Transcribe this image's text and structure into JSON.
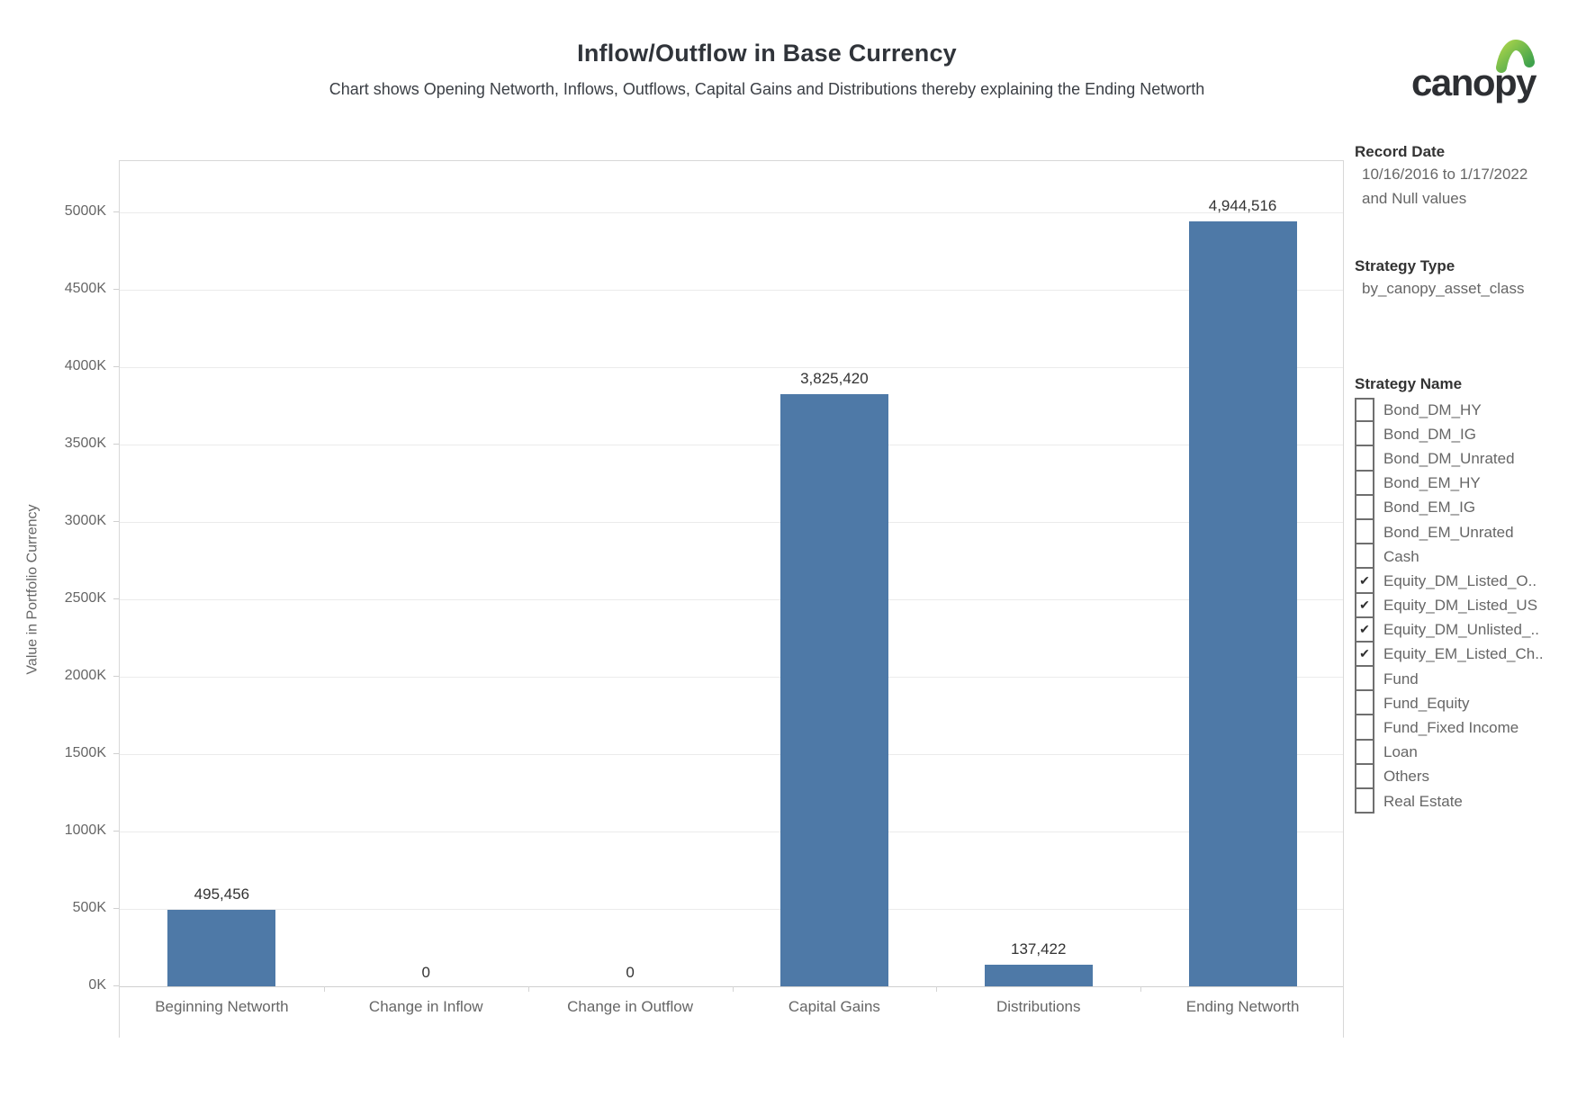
{
  "header": {
    "title": "Inflow/Outflow in Base Currency",
    "subtitle": "Chart shows Opening Networth, Inflows, Outflows, Capital Gains and Distributions thereby explaining the Ending Networth"
  },
  "brand": {
    "logo_text": "canopy"
  },
  "chart_data": {
    "type": "bar",
    "title": "Inflow/Outflow in Base Currency",
    "subtitle": "Chart shows Opening Networth, Inflows, Outflows, Capital Gains and Distributions thereby explaining the Ending Networth",
    "categories": [
      "Beginning Networth",
      "Change in Inflow",
      "Change in Outflow",
      "Capital Gains",
      "Distributions",
      "Ending Networth"
    ],
    "values": [
      495456,
      0,
      0,
      3825420,
      137422,
      4944516
    ],
    "value_labels": [
      "495,456",
      "0",
      "0",
      "3,825,420",
      "137,422",
      "4,944,516"
    ],
    "xlabel": "",
    "ylabel": "Value in Portfolio Currency",
    "ylim": [
      0,
      5330000
    ],
    "y_ticks": [
      0,
      500000,
      1000000,
      1500000,
      2000000,
      2500000,
      3000000,
      3500000,
      4000000,
      4500000,
      5000000
    ],
    "y_tick_labels": [
      "0K",
      "500K",
      "1000K",
      "1500K",
      "2000K",
      "2500K",
      "3000K",
      "3500K",
      "4000K",
      "4500K",
      "5000K"
    ],
    "bar_color": "#4e79a7",
    "grid": true,
    "legend": false
  },
  "sidebar": {
    "record_date": {
      "header": "Record Date",
      "range": "10/16/2016 to 1/17/2022",
      "note": "and Null values"
    },
    "strategy_type": {
      "header": "Strategy Type",
      "value": "by_canopy_asset_class"
    },
    "strategy_name": {
      "header": "Strategy Name",
      "items": [
        {
          "label": "Bond_DM_HY",
          "checked": false
        },
        {
          "label": "Bond_DM_IG",
          "checked": false
        },
        {
          "label": "Bond_DM_Unrated",
          "checked": false
        },
        {
          "label": "Bond_EM_HY",
          "checked": false
        },
        {
          "label": "Bond_EM_IG",
          "checked": false
        },
        {
          "label": "Bond_EM_Unrated",
          "checked": false
        },
        {
          "label": "Cash",
          "checked": false
        },
        {
          "label": "Equity_DM_Listed_O..",
          "checked": true
        },
        {
          "label": "Equity_DM_Listed_US",
          "checked": true
        },
        {
          "label": "Equity_DM_Unlisted_..",
          "checked": true
        },
        {
          "label": "Equity_EM_Listed_Ch..",
          "checked": true
        },
        {
          "label": "Fund",
          "checked": false
        },
        {
          "label": "Fund_Equity",
          "checked": false
        },
        {
          "label": "Fund_Fixed Income",
          "checked": false
        },
        {
          "label": "Loan",
          "checked": false
        },
        {
          "label": "Others",
          "checked": false
        },
        {
          "label": "Real Estate",
          "checked": false
        }
      ]
    }
  },
  "colors": {
    "bar": "#4e79a7",
    "leaf_light": "#a6d24b",
    "leaf_dark": "#3fa24c",
    "logo_text": "#2d2f33"
  }
}
